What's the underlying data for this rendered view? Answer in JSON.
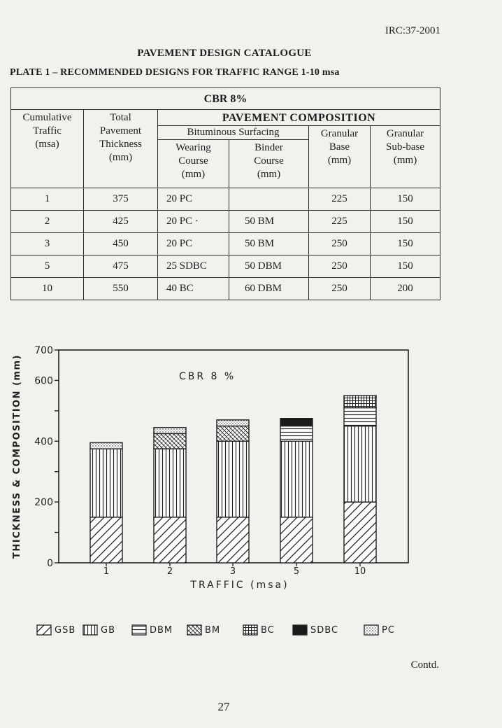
{
  "header": {
    "code": "IRC:37-2001",
    "title": "PAVEMENT DESIGN CATALOGUE",
    "plate": "PLATE 1 – RECOMMENDED DESIGNS FOR TRAFFIC RANGE 1-10 msa"
  },
  "table": {
    "cbr": "CBR 8%",
    "composition": "PAVEMENT COMPOSITION",
    "bituminous": "Bituminous Surfacing",
    "col_traffic": [
      "Cumulative",
      "Traffic",
      "(msa)"
    ],
    "col_total": [
      "Total",
      "Pavement",
      "Thickness",
      "(mm)"
    ],
    "col_wearing": [
      "Wearing",
      "Course",
      "(mm)"
    ],
    "col_binder": [
      "Binder",
      "Course",
      "(mm)"
    ],
    "col_base": [
      "Granular",
      "Base",
      "(mm)"
    ],
    "col_subbase": [
      "Granular",
      "Sub-base",
      "(mm)"
    ],
    "rows": [
      [
        "1",
        "375",
        "20 PC",
        "",
        "225",
        "150"
      ],
      [
        "2",
        "425",
        "20 PC ·",
        "50 BM",
        "225",
        "150"
      ],
      [
        "3",
        "450",
        "20 PC",
        "50 BM",
        "250",
        "150"
      ],
      [
        "5",
        "475",
        "25 SDBC",
        "50 DBM",
        "250",
        "150"
      ],
      [
        "10",
        "550",
        "40 BC",
        "60 DBM",
        "250",
        "200"
      ]
    ]
  },
  "chart_data": {
    "type": "bar",
    "stacked": true,
    "title": "CBR 8 %",
    "xlabel": "TRAFFIC  (msa)",
    "ylabel": "THICKNESS & COMPOSITION (mm)",
    "ylim": [
      0,
      700
    ],
    "yticks": [
      "0",
      "200",
      "400",
      "600",
      "700"
    ],
    "categories": [
      "1",
      "2",
      "3",
      "5",
      "10"
    ],
    "series": [
      {
        "name": "GSB",
        "values": [
          150,
          150,
          150,
          150,
          200
        ]
      },
      {
        "name": "GB",
        "values": [
          225,
          225,
          250,
          250,
          250
        ]
      },
      {
        "name": "BM",
        "values": [
          0,
          50,
          50,
          0,
          0
        ]
      },
      {
        "name": "DBM",
        "values": [
          0,
          0,
          0,
          50,
          60
        ]
      },
      {
        "name": "PC",
        "values": [
          20,
          20,
          20,
          0,
          0
        ]
      },
      {
        "name": "SDBC",
        "values": [
          0,
          0,
          0,
          25,
          0
        ]
      },
      {
        "name": "BC",
        "values": [
          0,
          0,
          0,
          0,
          40
        ]
      }
    ]
  },
  "legend": {
    "items": [
      {
        "label": "GSB",
        "pattern": "hatch"
      },
      {
        "label": "GB",
        "pattern": "vlines"
      },
      {
        "label": "DBM",
        "pattern": "hlines"
      },
      {
        "label": "BM",
        "pattern": "crosshatch"
      },
      {
        "label": "BC",
        "pattern": "grid"
      },
      {
        "label": "SDBC",
        "pattern": "solid"
      },
      {
        "label": "PC",
        "pattern": "dots"
      }
    ]
  },
  "footer": {
    "contd": "Contd.",
    "page": "27"
  }
}
